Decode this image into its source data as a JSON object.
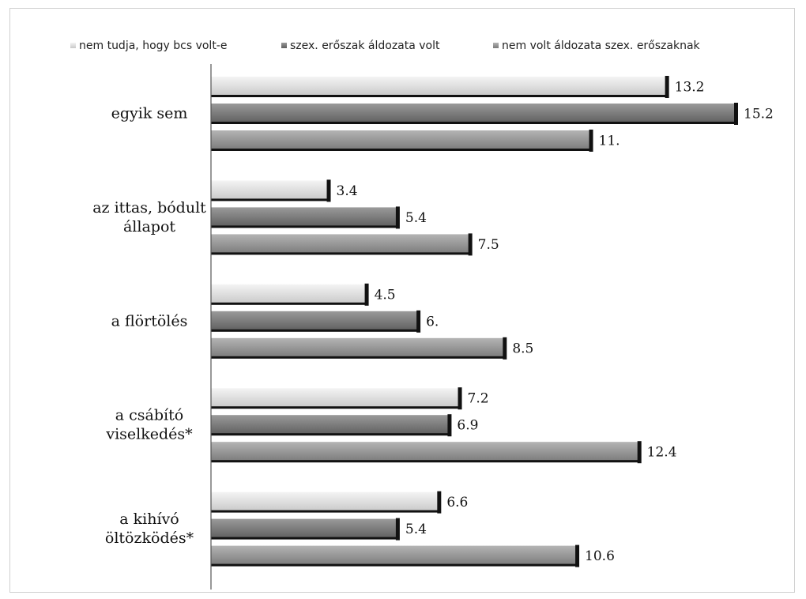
{
  "chart_data": {
    "type": "bar",
    "orientation": "horizontal",
    "categories": [
      [
        "egyik sem"
      ],
      [
        "az ittas, bódult",
        "állapot"
      ],
      [
        "a flörtölés"
      ],
      [
        "a csábító",
        "viselkedés*"
      ],
      [
        "a kihívó",
        "öltözködés*"
      ]
    ],
    "series": [
      {
        "name": "nem tudja, hogy bcs volt-e",
        "values": [
          13.2,
          3.4,
          4.5,
          7.2,
          6.6
        ],
        "labels": [
          "13.2",
          "3.4",
          "4.5",
          "7.2",
          "6.6"
        ],
        "color_top": "#f4f4f4",
        "color_bottom": "#c8c8c8"
      },
      {
        "name": "szex. erőszak áldozata volt",
        "values": [
          15.2,
          5.4,
          6.0,
          6.9,
          5.4
        ],
        "labels": [
          "15.2",
          "5.4",
          "6.",
          "6.9",
          "5.4"
        ],
        "color_top": "#9a9a9a",
        "color_bottom": "#5e5e5e"
      },
      {
        "name": "nem volt áldozata szex. erőszaknak",
        "values": [
          11.0,
          7.5,
          8.5,
          12.4,
          10.6
        ],
        "labels": [
          "11.",
          "7.5",
          "8.5",
          "12.4",
          "10.6"
        ],
        "color_top": "#b4b4b4",
        "color_bottom": "#7a7a7a"
      }
    ],
    "xlim": [
      0,
      15.2
    ],
    "legend_position": "top",
    "grid": false
  }
}
